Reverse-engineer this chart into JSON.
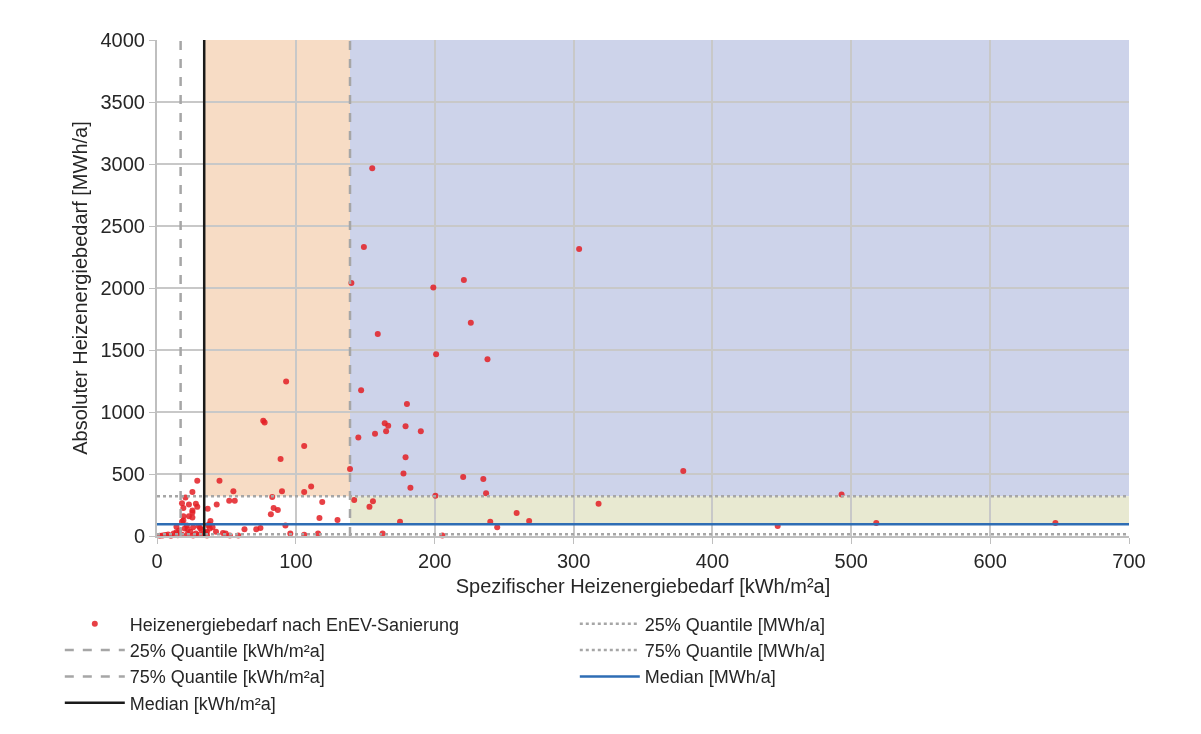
{
  "chart_data": {
    "type": "scatter",
    "xlabel": "Spezifischer Heizenergiebedarf [kWh/m²a]",
    "ylabel": "Absoluter Heizenergiebedarf [MWh/a]",
    "xlim": [
      0,
      700
    ],
    "xticks": [
      0,
      100,
      200,
      300,
      400,
      500,
      600,
      700
    ],
    "ylim": [
      0,
      4000
    ],
    "yticks": [
      0,
      500,
      1000,
      1500,
      2000,
      2500,
      3000,
      3500,
      4000
    ],
    "grid": true,
    "legend": "bottom",
    "marker": "circle",
    "series": [
      {
        "name": "Heizenergiebedarf nach EnEV-Sanierung",
        "color": "#e31e24",
        "x": [
          93,
          76.5,
          77.5,
          89,
          106,
          139,
          140,
          155,
          149,
          147,
          145,
          157,
          159,
          199,
          221,
          304,
          226,
          201,
          238,
          180,
          164,
          166.5,
          165,
          179,
          190,
          179,
          177.5,
          182.5,
          220.5,
          235,
          237,
          200.5,
          142,
          155.5,
          153,
          318,
          259,
          268,
          240,
          175,
          245,
          162.5,
          205.5,
          379,
          493,
          447,
          518,
          647,
          45,
          29,
          55,
          90,
          111,
          106,
          83,
          52,
          56,
          25.5,
          20.5,
          18,
          23,
          28,
          19,
          25.5,
          25.5,
          29,
          23,
          19,
          25.5,
          43,
          36.5,
          119,
          84,
          87,
          82,
          117,
          130,
          92.5,
          38.5,
          37.5,
          19,
          18,
          14,
          21.5,
          42.5,
          47.5,
          49.5,
          52.5,
          58.5,
          63,
          71.5,
          74.5,
          96,
          106,
          116,
          31,
          36,
          37,
          2,
          4,
          6,
          8,
          10,
          12,
          14,
          15,
          16,
          18,
          20,
          22,
          24,
          26,
          28,
          30,
          32,
          33,
          35,
          36,
          38,
          40,
          30,
          26,
          22
        ],
        "values": [
          1245,
          930,
          915,
          620,
          725,
          540,
          2040,
          2965,
          2330,
          1175,
          795,
          825,
          1630,
          2005,
          2065,
          2315,
          1720,
          1465,
          1425,
          1065,
          910,
          890,
          845,
          885,
          845,
          635,
          505,
          390,
          475,
          460,
          345,
          325,
          290,
          280,
          235,
          260,
          185,
          120,
          115,
          115,
          70,
          20,
          5,
          525,
          335,
          80,
          105,
          105,
          445,
          445,
          360,
          360,
          400,
          355,
          315,
          285,
          285,
          355,
          310,
          265,
          255,
          260,
          225,
          205,
          190,
          235,
          160,
          160,
          150,
          255,
          220,
          275,
          225,
          210,
          175,
          145,
          130,
          85,
          120,
          95,
          125,
          115,
          75,
          85,
          35,
          25,
          20,
          5,
          5,
          55,
          55,
          65,
          20,
          10,
          20,
          65,
          35,
          85,
          2,
          5,
          8,
          12,
          3,
          20,
          30,
          6,
          45,
          10,
          60,
          15,
          35,
          5,
          20,
          8,
          50,
          15,
          25,
          5,
          60,
          70,
          80,
          70,
          55
        ]
      }
    ],
    "ref_lines": [
      {
        "axis": "y",
        "value": 15,
        "label": "25% Quantile [MWh/a]",
        "color": "#a6a6a6",
        "line_style": "dotted"
      },
      {
        "axis": "x",
        "value": 17,
        "label": "25% Quantile [kWh/m²a]",
        "color": "#a6a6a6",
        "line_style": "dashed"
      },
      {
        "axis": "y",
        "value": 320,
        "label": "75% Quantile [MWh/a]",
        "color": "#a6a6a6",
        "line_style": "dotted"
      },
      {
        "axis": "x",
        "value": 139,
        "label": "75% Quantile [kWh/m²a]",
        "color": "#a6a6a6",
        "line_style": "dashed"
      },
      {
        "axis": "y",
        "value": 95,
        "label": "Median [MWh/a]",
        "color": "#2e6db4",
        "line_style": "solid"
      },
      {
        "axis": "x",
        "value": 34,
        "label": "Median [kWh/m²a]",
        "color": "#1a1a1a",
        "line_style": "solid"
      }
    ],
    "bands": [
      {
        "axis": "x",
        "from": 34,
        "to": 139,
        "color": "#f7dcc5"
      },
      {
        "axis": "x",
        "from": 139,
        "to": 700,
        "color": "#cdd3ea"
      },
      {
        "axis": "y",
        "from": 95,
        "to": 320,
        "color": "#e8e9d1"
      }
    ]
  }
}
